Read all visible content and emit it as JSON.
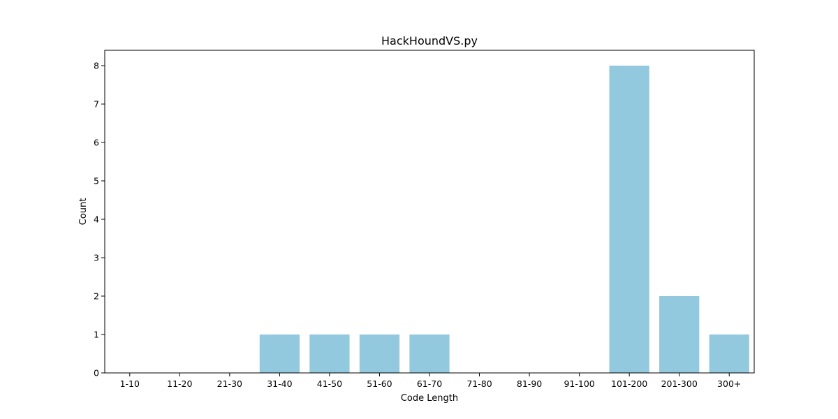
{
  "chart_data": {
    "type": "bar",
    "title": "HackHoundVS.py",
    "xlabel": "Code Length",
    "ylabel": "Count",
    "categories": [
      "1-10",
      "11-20",
      "21-30",
      "31-40",
      "41-50",
      "51-60",
      "61-70",
      "71-80",
      "81-90",
      "91-100",
      "101-200",
      "201-300",
      "300+"
    ],
    "values": [
      0,
      0,
      0,
      1,
      1,
      1,
      1,
      0,
      0,
      0,
      8,
      2,
      1
    ],
    "ylim": [
      0,
      8.4
    ],
    "yticks": [
      0,
      1,
      2,
      3,
      4,
      5,
      6,
      7,
      8
    ],
    "bar_color": "#92c9de",
    "grid": false,
    "legend": "none"
  }
}
